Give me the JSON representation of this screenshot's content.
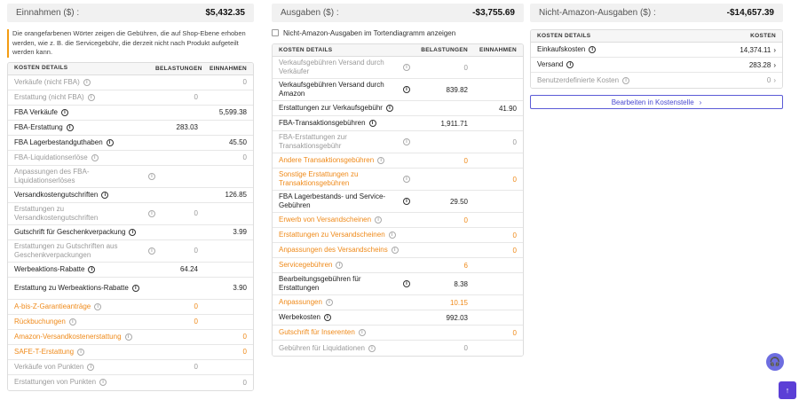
{
  "colors": {
    "accent": "#5b5bd6",
    "orange": "#ef8a1a",
    "muted": "#9a9a9a"
  },
  "income": {
    "summary_label": "Einnahmen ($) :",
    "summary_value": "$5,432.35",
    "note": "Die orangefarbenen Wörter zeigen die Gebühren, die auf Shop-Ebene erhoben werden, wie z. B. die Servicegebühr, die derzeit nicht nach Produkt aufgeteilt werden kann.",
    "headers": {
      "name": "KOSTEN DETAILS",
      "b": "BELASTUNGEN",
      "e": "EINNAHMEN"
    },
    "rows": [
      {
        "label": "Verkäufe (nicht FBA)",
        "b": "",
        "e": "0",
        "style": "muted"
      },
      {
        "label": "Erstattung (nicht FBA)",
        "b": "0",
        "e": "",
        "style": "muted"
      },
      {
        "label": "FBA Verkäufe",
        "b": "",
        "e": "5,599.38",
        "style": "normal"
      },
      {
        "label": "FBA-Erstattung",
        "b": "283.03",
        "e": "",
        "style": "normal"
      },
      {
        "label": "FBA Lagerbestandguthaben",
        "b": "",
        "e": "45.50",
        "style": "normal"
      },
      {
        "label": "FBA-Liquidationserlöse",
        "b": "",
        "e": "0",
        "style": "muted"
      },
      {
        "label": "Anpassungen des FBA-Liquidationserlöses",
        "b": "",
        "e": "",
        "style": "muted"
      },
      {
        "label": "Versandkostengutschriften",
        "b": "",
        "e": "126.85",
        "style": "normal"
      },
      {
        "label": "Erstattungen zu Versandkostengutschriften",
        "b": "0",
        "e": "",
        "style": "muted"
      },
      {
        "label": "Gutschrift für Geschenkverpackung",
        "b": "",
        "e": "3.99",
        "style": "normal"
      },
      {
        "label": "Erstattungen zu Gutschriften aus Geschenkverpackungen",
        "b": "0",
        "e": "",
        "style": "muted"
      },
      {
        "label": "Werbeaktions-Rabatte",
        "b": "64.24",
        "e": "",
        "style": "normal"
      },
      {
        "label": "Erstattung zu Werbeaktions-Rabatte",
        "b": "",
        "e": "3.90",
        "style": "normal"
      },
      {
        "label": "A-bis-Z-Garantieanträge",
        "b": "0",
        "e": "",
        "style": "orange"
      },
      {
        "label": "Rückbuchungen",
        "b": "0",
        "e": "",
        "style": "orange"
      },
      {
        "label": "Amazon-Versandkostenerstattung",
        "b": "",
        "e": "0",
        "style": "orange"
      },
      {
        "label": "SAFE-T-Erstattung",
        "b": "",
        "e": "0",
        "style": "orange"
      },
      {
        "label": "Verkäufe von Punkten",
        "b": "0",
        "e": "",
        "style": "muted"
      },
      {
        "label": "Erstattungen von Punkten",
        "b": "",
        "e": "0",
        "style": "muted"
      }
    ]
  },
  "expenses": {
    "summary_label": "Ausgaben ($) :",
    "summary_value": "-$3,755.69",
    "checkbox_label": "Nicht-Amazon-Ausgaben im Tortendiagramm anzeigen",
    "headers": {
      "name": "KOSTEN DETAILS",
      "b": "BELASTUNGEN",
      "e": "EINNAHMEN"
    },
    "rows": [
      {
        "label": "Verkaufsgebühren Versand durch Verkäufer",
        "b": "0",
        "e": "",
        "style": "muted"
      },
      {
        "label": "Verkaufsgebühren Versand durch Amazon",
        "b": "839.82",
        "e": "",
        "style": "normal"
      },
      {
        "label": "Erstattungen zur Verkaufsgebühr",
        "b": "",
        "e": "41.90",
        "style": "normal"
      },
      {
        "label": "FBA-Transaktionsgebühren",
        "b": "1,911.71",
        "e": "",
        "style": "normal"
      },
      {
        "label": "FBA-Erstattungen zur Transaktionsgebühr",
        "b": "",
        "e": "0",
        "style": "muted"
      },
      {
        "label": "Andere Transaktionsgebühren",
        "b": "0",
        "e": "",
        "style": "orange"
      },
      {
        "label": "Sonstige Erstattungen zu Transaktionsgebühren",
        "b": "",
        "e": "0",
        "style": "orange"
      },
      {
        "label": "FBA Lagerbestands- und Service-Gebühren",
        "b": "29.50",
        "e": "",
        "style": "normal"
      },
      {
        "label": "Erwerb von Versandscheinen",
        "b": "0",
        "e": "",
        "style": "orange"
      },
      {
        "label": "Erstattungen zu Versandscheinen",
        "b": "",
        "e": "0",
        "style": "orange"
      },
      {
        "label": "Anpassungen des Versandscheins",
        "b": "",
        "e": "0",
        "style": "orange"
      },
      {
        "label": "Servicegebühren",
        "b": "6",
        "e": "",
        "style": "orange-dark"
      },
      {
        "label": "Bearbeitungsgebühren für Erstattungen",
        "b": "8.38",
        "e": "",
        "style": "normal"
      },
      {
        "label": "Anpassungen",
        "b": "10.15",
        "e": "",
        "style": "orange-dark"
      },
      {
        "label": "Werbekosten",
        "b": "992.03",
        "e": "",
        "style": "normal"
      },
      {
        "label": "Gutschrift für Inserenten",
        "b": "",
        "e": "0",
        "style": "orange"
      },
      {
        "label": "Gebühren für Liquidationen",
        "b": "0",
        "e": "",
        "style": "muted"
      }
    ]
  },
  "non_amazon": {
    "summary_label": "Nicht-Amazon-Ausgaben ($) :",
    "summary_value": "-$14,657.39",
    "headers": {
      "name": "KOSTEN DETAILS",
      "k": "KOSTEN"
    },
    "rows": [
      {
        "label": "Einkaufskosten",
        "k": "14,374.11",
        "style": "normal"
      },
      {
        "label": "Versand",
        "k": "283.28",
        "style": "normal"
      },
      {
        "label": "Benutzerdefinierte Kosten",
        "k": "0",
        "style": "muted"
      }
    ],
    "edit_button": "Bearbeiten in Kostenstelle"
  },
  "icons": {
    "info": "info-icon",
    "chevron": "chevron-right-icon",
    "scroll_top": "arrow-up-icon",
    "help": "headset-icon"
  }
}
